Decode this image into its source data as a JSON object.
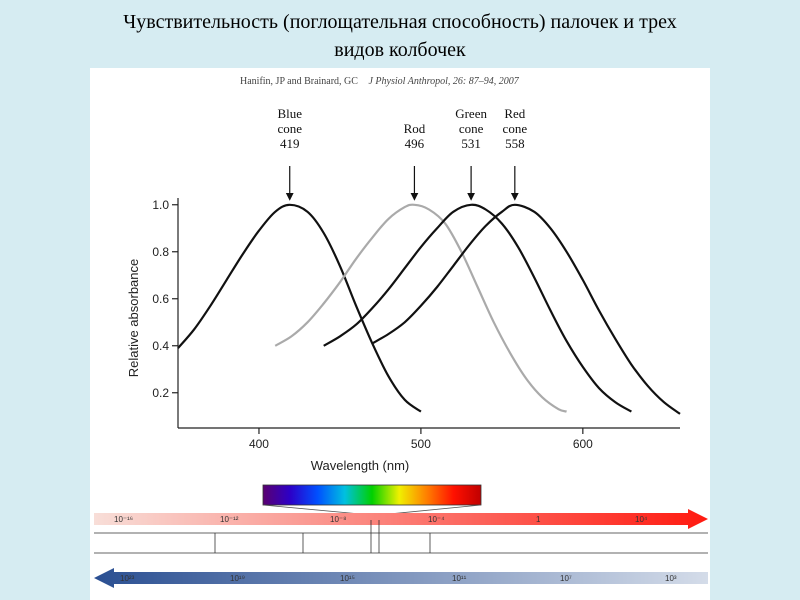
{
  "slide": {
    "title_line1": "Чувствительность (поглощательная способность) палочек и трех",
    "title_line2": "видов колбочек"
  },
  "citation": {
    "authors": "Hanifin, JP and Brainard, GC",
    "journal": "J Physiol Anthropol, 26: 87–94, 2007"
  },
  "chart_data": {
    "type": "line",
    "xlabel": "Wavelength (nm)",
    "ylabel": "Relative absorbance",
    "xlim": [
      350,
      660
    ],
    "ylim": [
      0.05,
      1.05
    ],
    "x_ticks": [
      "400",
      "500",
      "600"
    ],
    "y_ticks": [
      "0.2",
      "0.4",
      "0.6",
      "0.8",
      "1.0"
    ],
    "grid": false,
    "series": [
      {
        "name": "Blue cone",
        "color": "#111111",
        "x": [
          350,
          360,
          370,
          380,
          390,
          400,
          410,
          419,
          430,
          440,
          450,
          460,
          470,
          480,
          490,
          500
        ],
        "y": [
          0.39,
          0.47,
          0.57,
          0.68,
          0.79,
          0.89,
          0.97,
          1.0,
          0.97,
          0.88,
          0.74,
          0.57,
          0.41,
          0.27,
          0.17,
          0.12
        ]
      },
      {
        "name": "Rod",
        "color": "#aaaaaa",
        "x": [
          410,
          420,
          430,
          440,
          450,
          460,
          470,
          480,
          490,
          496,
          505,
          515,
          525,
          535,
          545,
          555,
          565,
          575,
          585,
          590
        ],
        "y": [
          0.4,
          0.44,
          0.5,
          0.58,
          0.67,
          0.77,
          0.86,
          0.94,
          0.99,
          1.0,
          0.98,
          0.92,
          0.8,
          0.65,
          0.5,
          0.37,
          0.26,
          0.18,
          0.13,
          0.12
        ]
      },
      {
        "name": "Green cone",
        "color": "#111111",
        "x": [
          440,
          450,
          460,
          470,
          480,
          490,
          500,
          510,
          520,
          531,
          540,
          550,
          560,
          570,
          580,
          590,
          600,
          610,
          620,
          630
        ],
        "y": [
          0.4,
          0.44,
          0.49,
          0.56,
          0.64,
          0.73,
          0.82,
          0.9,
          0.97,
          1.0,
          0.98,
          0.92,
          0.82,
          0.69,
          0.55,
          0.42,
          0.31,
          0.22,
          0.16,
          0.12
        ]
      },
      {
        "name": "Red cone",
        "color": "#111111",
        "x": [
          470,
          480,
          490,
          500,
          510,
          520,
          530,
          540,
          550,
          558,
          570,
          580,
          590,
          600,
          610,
          620,
          630,
          640,
          650,
          660
        ],
        "y": [
          0.41,
          0.45,
          0.5,
          0.57,
          0.65,
          0.74,
          0.83,
          0.91,
          0.97,
          1.0,
          0.97,
          0.9,
          0.8,
          0.68,
          0.55,
          0.43,
          0.32,
          0.23,
          0.16,
          0.11
        ]
      }
    ],
    "annotations": [
      {
        "lines": [
          "Blue",
          "cone",
          "419"
        ],
        "peak_x": 419
      },
      {
        "lines": [
          "Rod",
          "496"
        ],
        "peak_x": 496
      },
      {
        "lines": [
          "Green",
          "cone",
          "531"
        ],
        "peak_x": 531
      },
      {
        "lines": [
          "Red",
          "cone",
          "558"
        ],
        "peak_x": 558
      }
    ]
  },
  "spectrum": {
    "wavelength_ticks": [
      "10⁻¹⁶",
      "10⁻¹²",
      "10⁻⁸",
      "10⁻⁴",
      "1",
      "10⁴"
    ],
    "frequency_ticks": [
      "10²³",
      "10¹⁹",
      "10¹⁵",
      "10¹¹",
      "10⁷",
      "10³"
    ],
    "wavelength_arrow_colors": [
      "#f8ded8",
      "#ff1a10"
    ],
    "frequency_arrow_colors": [
      "#2a4f92",
      "#d4dce9"
    ],
    "visible_colors": [
      "#5a0070",
      "#2c00c8",
      "#0050ff",
      "#00c0e0",
      "#00d000",
      "#f0f000",
      "#ff8000",
      "#ff1000",
      "#c00000"
    ]
  }
}
